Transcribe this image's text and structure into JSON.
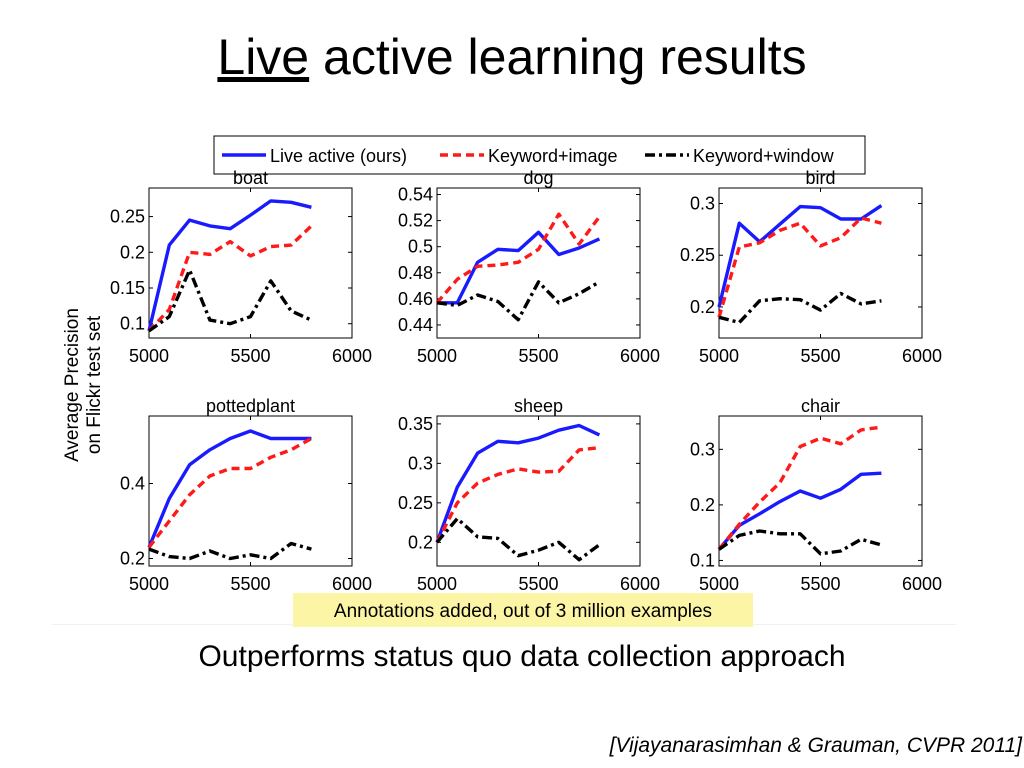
{
  "slide": {
    "title_underlined": "Live",
    "title_rest": " active learning results",
    "subtitle": "Outperforms status quo data collection approach",
    "citation": "[Vijayanarasimhan & Grauman, CVPR 2011]"
  },
  "figure": {
    "ylabel_line1": "Average Precision",
    "ylabel_line2": "on Flickr test set",
    "xlabel": "Annotations added, out of 3 million examples",
    "legend": [
      "Live active (ours)",
      "Keyword+image",
      "Keyword+window"
    ],
    "colors": {
      "live": "#1a1aff",
      "keyword_image": "#ff1a1a",
      "keyword_window": "#000000",
      "xlabel_bg": "#fcf5a5"
    }
  },
  "chart_data": [
    {
      "type": "line",
      "title": "boat",
      "x": [
        5000,
        5100,
        5200,
        5300,
        5400,
        5500,
        5600,
        5700,
        5800
      ],
      "xlim": [
        5000,
        6000
      ],
      "xticks": [
        5000,
        5500,
        6000
      ],
      "ylim": [
        0.08,
        0.29
      ],
      "yticks": [
        0.1,
        0.15,
        0.2,
        0.25
      ],
      "yticklabels": [
        "0.1",
        "0.15",
        "0.2",
        "0.25"
      ],
      "series": [
        {
          "name": "Live active (ours)",
          "values": [
            0.09,
            0.21,
            0.245,
            0.237,
            0.233,
            0.252,
            0.272,
            0.27,
            0.263
          ]
        },
        {
          "name": "Keyword+image",
          "values": [
            0.09,
            0.12,
            0.2,
            0.197,
            0.215,
            0.195,
            0.208,
            0.21,
            0.237
          ]
        },
        {
          "name": "Keyword+window",
          "values": [
            0.09,
            0.11,
            0.175,
            0.105,
            0.1,
            0.11,
            0.16,
            0.118,
            0.105
          ]
        }
      ]
    },
    {
      "type": "line",
      "title": "dog",
      "x": [
        5000,
        5100,
        5200,
        5300,
        5400,
        5500,
        5600,
        5700,
        5800
      ],
      "xlim": [
        5000,
        6000
      ],
      "xticks": [
        5000,
        5500,
        6000
      ],
      "ylim": [
        0.43,
        0.545
      ],
      "yticks": [
        0.44,
        0.46,
        0.48,
        0.5,
        0.52,
        0.54
      ],
      "yticklabels": [
        "0.44",
        "0.46",
        "0.48",
        "0.5",
        "0.52",
        "0.54"
      ],
      "series": [
        {
          "name": "Live active (ours)",
          "values": [
            0.457,
            0.457,
            0.488,
            0.498,
            0.497,
            0.511,
            0.494,
            0.499,
            0.506
          ]
        },
        {
          "name": "Keyword+image",
          "values": [
            0.457,
            0.475,
            0.485,
            0.486,
            0.488,
            0.498,
            0.525,
            0.502,
            0.523
          ]
        },
        {
          "name": "Keyword+window",
          "values": [
            0.457,
            0.455,
            0.463,
            0.458,
            0.444,
            0.473,
            0.457,
            0.464,
            0.473
          ]
        }
      ]
    },
    {
      "type": "line",
      "title": "bird",
      "x": [
        5000,
        5100,
        5200,
        5300,
        5400,
        5500,
        5600,
        5700,
        5800
      ],
      "xlim": [
        5000,
        6000
      ],
      "xticks": [
        5000,
        5500,
        6000
      ],
      "ylim": [
        0.17,
        0.315
      ],
      "yticks": [
        0.2,
        0.25,
        0.3
      ],
      "yticklabels": [
        "0.2",
        "0.25",
        "0.3"
      ],
      "series": [
        {
          "name": "Live active (ours)",
          "values": [
            0.2,
            0.281,
            0.263,
            0.28,
            0.297,
            0.296,
            0.285,
            0.285,
            0.298
          ]
        },
        {
          "name": "Keyword+image",
          "values": [
            0.19,
            0.258,
            0.262,
            0.274,
            0.281,
            0.259,
            0.267,
            0.286,
            0.281
          ]
        },
        {
          "name": "Keyword+window",
          "values": [
            0.19,
            0.185,
            0.206,
            0.208,
            0.207,
            0.197,
            0.213,
            0.203,
            0.206
          ]
        }
      ]
    },
    {
      "type": "line",
      "title": "pottedplant",
      "x": [
        5000,
        5100,
        5200,
        5300,
        5400,
        5500,
        5600,
        5700,
        5800
      ],
      "xlim": [
        5000,
        6000
      ],
      "xticks": [
        5000,
        5500,
        6000
      ],
      "ylim": [
        0.18,
        0.58
      ],
      "yticks": [
        0.2,
        0.4
      ],
      "yticklabels": [
        "0.2",
        "0.4"
      ],
      "series": [
        {
          "name": "Live active (ours)",
          "values": [
            0.23,
            0.36,
            0.45,
            0.49,
            0.52,
            0.54,
            0.52,
            0.52,
            0.52
          ]
        },
        {
          "name": "Keyword+image",
          "values": [
            0.23,
            0.3,
            0.37,
            0.42,
            0.44,
            0.44,
            0.47,
            0.49,
            0.52
          ]
        },
        {
          "name": "Keyword+window",
          "values": [
            0.225,
            0.205,
            0.2,
            0.22,
            0.2,
            0.21,
            0.2,
            0.24,
            0.225
          ]
        }
      ]
    },
    {
      "type": "line",
      "title": "sheep",
      "x": [
        5000,
        5100,
        5200,
        5300,
        5400,
        5500,
        5600,
        5700,
        5800
      ],
      "xlim": [
        5000,
        6000
      ],
      "xticks": [
        5000,
        5500,
        6000
      ],
      "ylim": [
        0.17,
        0.36
      ],
      "yticks": [
        0.2,
        0.25,
        0.3,
        0.35
      ],
      "yticklabels": [
        "0.2",
        "0.25",
        "0.3",
        "0.35"
      ],
      "series": [
        {
          "name": "Live active (ours)",
          "values": [
            0.2,
            0.27,
            0.313,
            0.328,
            0.326,
            0.332,
            0.342,
            0.348,
            0.336
          ]
        },
        {
          "name": "Keyword+image",
          "values": [
            0.2,
            0.25,
            0.275,
            0.286,
            0.293,
            0.289,
            0.29,
            0.317,
            0.32
          ]
        },
        {
          "name": "Keyword+window",
          "values": [
            0.2,
            0.23,
            0.207,
            0.205,
            0.183,
            0.19,
            0.2,
            0.178,
            0.197
          ]
        }
      ]
    },
    {
      "type": "line",
      "title": "chair",
      "x": [
        5000,
        5100,
        5200,
        5300,
        5400,
        5500,
        5600,
        5700,
        5800
      ],
      "xlim": [
        5000,
        6000
      ],
      "xticks": [
        5000,
        5500,
        6000
      ],
      "ylim": [
        0.09,
        0.36
      ],
      "yticks": [
        0.1,
        0.2,
        0.3
      ],
      "yticklabels": [
        "0.1",
        "0.2",
        "0.3"
      ],
      "series": [
        {
          "name": "Live active (ours)",
          "values": [
            0.12,
            0.163,
            0.184,
            0.206,
            0.225,
            0.212,
            0.228,
            0.255,
            0.257
          ]
        },
        {
          "name": "Keyword+image",
          "values": [
            0.12,
            0.165,
            0.205,
            0.24,
            0.305,
            0.32,
            0.31,
            0.335,
            0.34
          ]
        },
        {
          "name": "Keyword+window",
          "values": [
            0.12,
            0.145,
            0.153,
            0.148,
            0.148,
            0.112,
            0.117,
            0.138,
            0.128
          ]
        }
      ]
    }
  ]
}
